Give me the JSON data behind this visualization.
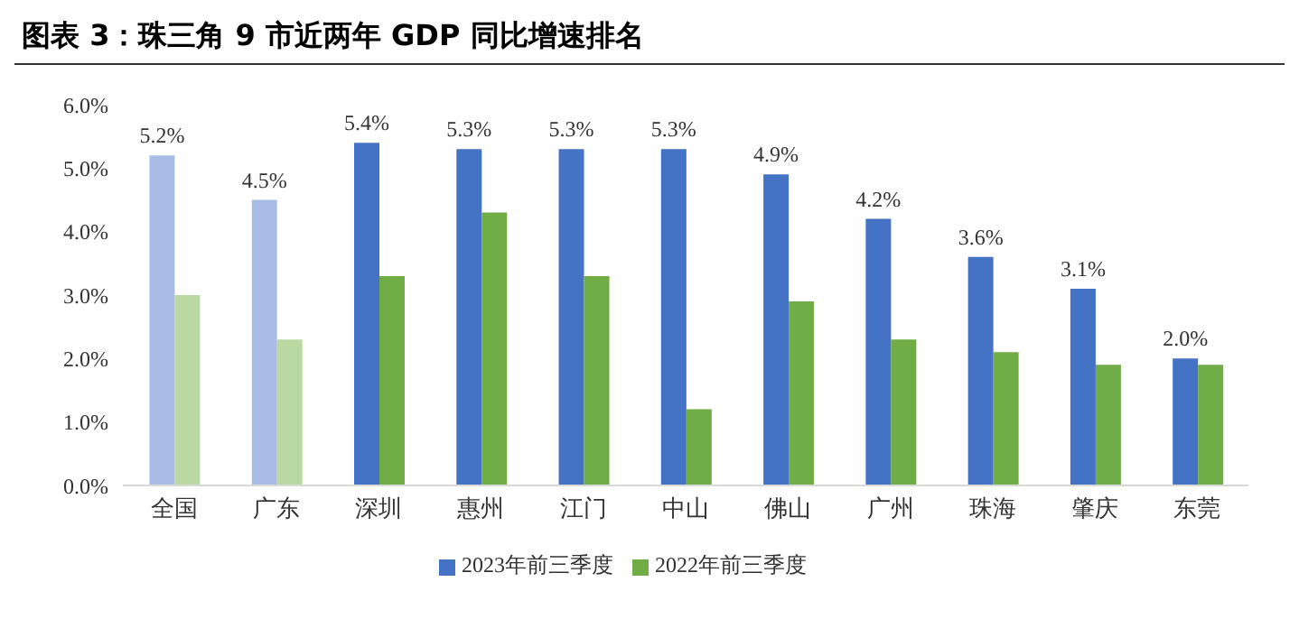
{
  "chart_data": {
    "type": "bar",
    "title": "图表 3：珠三角 9 市近两年 GDP 同比增速排名",
    "categories": [
      "全国",
      "广东",
      "深圳",
      "惠州",
      "江门",
      "中山",
      "佛山",
      "广州",
      "珠海",
      "肇庆",
      "东莞"
    ],
    "series": [
      {
        "name": "2023年前三季度",
        "color": "#4472c4",
        "colors": [
          "#a9bce6",
          "#a9bce6",
          "#4472c4",
          "#4472c4",
          "#4472c4",
          "#4472c4",
          "#4472c4",
          "#4472c4",
          "#4472c4",
          "#4472c4",
          "#4472c4"
        ],
        "values": [
          5.2,
          4.5,
          5.4,
          5.3,
          5.3,
          5.3,
          4.9,
          4.2,
          3.6,
          3.1,
          2.0
        ],
        "value_labels": [
          "5.2%",
          "4.5%",
          "5.4%",
          "5.3%",
          "5.3%",
          "5.3%",
          "4.9%",
          "4.2%",
          "3.6%",
          "3.1%",
          "2.0%"
        ]
      },
      {
        "name": "2022年前三季度",
        "color": "#70ad47",
        "colors": [
          "#b9d8a2",
          "#b9d8a2",
          "#70ad47",
          "#70ad47",
          "#70ad47",
          "#70ad47",
          "#70ad47",
          "#70ad47",
          "#70ad47",
          "#70ad47",
          "#70ad47"
        ],
        "values": [
          3.0,
          2.3,
          3.3,
          4.3,
          3.3,
          1.2,
          2.9,
          2.3,
          2.1,
          1.9,
          1.9
        ]
      }
    ],
    "ylim": [
      0,
      6
    ],
    "yticks": [
      {
        "value": 0,
        "label": "0.0%"
      },
      {
        "value": 1,
        "label": "1.0%"
      },
      {
        "value": 2,
        "label": "2.0%"
      },
      {
        "value": 3,
        "label": "3.0%"
      },
      {
        "value": 4,
        "label": "4.0%"
      },
      {
        "value": 5,
        "label": "5.0%"
      },
      {
        "value": 6,
        "label": "6.0%"
      }
    ],
    "grid": false,
    "legend": "bottom"
  }
}
